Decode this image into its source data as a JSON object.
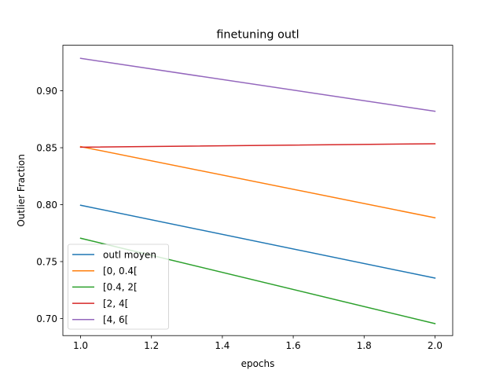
{
  "chart_data": {
    "type": "line",
    "title": "finetuning outl",
    "xlabel": "epochs",
    "ylabel": "Outlier Fraction",
    "xlim": [
      0.95,
      2.05
    ],
    "ylim": [
      0.685,
      0.94
    ],
    "xticks": [
      1.0,
      1.2,
      1.4,
      1.6,
      1.8,
      2.0
    ],
    "xtick_labels": [
      "1.0",
      "1.2",
      "1.4",
      "1.6",
      "1.8",
      "2.0"
    ],
    "yticks": [
      0.7,
      0.75,
      0.8,
      0.85,
      0.9
    ],
    "ytick_labels": [
      "0.70",
      "0.75",
      "0.80",
      "0.85",
      "0.90"
    ],
    "grid": false,
    "legend_position": "lower-left",
    "x": [
      1.0,
      2.0
    ],
    "series": [
      {
        "name": "outl moyen",
        "color": "#1f77b4",
        "values": [
          0.7995,
          0.7355
        ]
      },
      {
        "name": "[0, 0.4[",
        "color": "#ff7f0e",
        "values": [
          0.851,
          0.7885
        ]
      },
      {
        "name": "[0.4, 2[",
        "color": "#2ca02c",
        "values": [
          0.7705,
          0.6955
        ]
      },
      {
        "name": "[2, 4[",
        "color": "#d62728",
        "values": [
          0.8505,
          0.8535
        ]
      },
      {
        "name": "[4, 6[",
        "color": "#9467bd",
        "values": [
          0.9285,
          0.882
        ]
      }
    ]
  }
}
